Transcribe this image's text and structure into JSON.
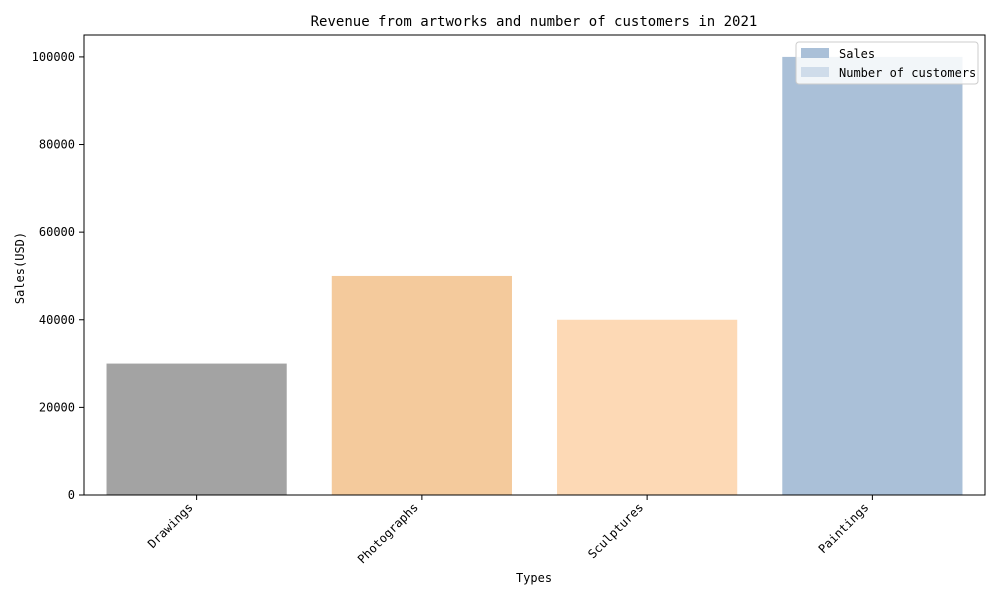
{
  "chart_data": {
    "type": "bar",
    "title": "Revenue from artworks and number of customers in 2021",
    "xlabel": "Types",
    "ylabel": "Sales(USD)",
    "categories": [
      "Drawings",
      "Photographs",
      "Sculptures",
      "Paintings"
    ],
    "series": [
      {
        "name": "Sales",
        "values": [
          30000,
          50000,
          40000,
          100000
        ],
        "bar_colors": [
          "#a3a3a3",
          "#f4ca9c",
          "#fdd9b5",
          "#aac0d8"
        ]
      }
    ],
    "ylim": [
      0,
      105000
    ],
    "yticks": [
      0,
      20000,
      40000,
      60000,
      80000,
      100000
    ],
    "grid": false,
    "legend": {
      "position": "top-right",
      "entries": [
        {
          "label": "Sales",
          "color": "#aac0d8"
        },
        {
          "label": "Number of customers",
          "color": "#cfdcea"
        }
      ]
    }
  }
}
